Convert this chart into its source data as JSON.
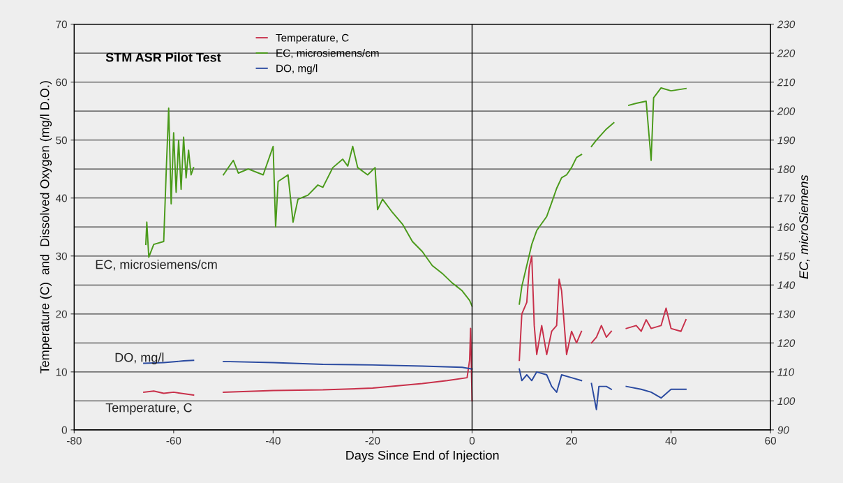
{
  "chart_data": {
    "type": "line",
    "title": "STM ASR Pilot Test",
    "xlabel": "Days Since End of Injection",
    "ylabel": "Temperature (C)  and  Dissolved Oxygen (mg/l D.O.)",
    "y2label": "EC, microSiemens",
    "xlim": [
      -80,
      60
    ],
    "xticks": [
      -80,
      -60,
      -40,
      -20,
      0,
      20,
      40,
      60
    ],
    "ylim": [
      0,
      70
    ],
    "yticks": [
      0,
      10,
      20,
      30,
      40,
      50,
      60,
      70
    ],
    "y2lim": [
      90,
      230
    ],
    "y2ticks": [
      90,
      100,
      110,
      120,
      130,
      140,
      150,
      160,
      170,
      180,
      190,
      200,
      210,
      220,
      230
    ],
    "grid": "y",
    "legend": "top",
    "marker": "none",
    "line_style": "solid",
    "ref_lines": [
      {
        "axis": "x",
        "value": 0,
        "color": "#000000"
      }
    ],
    "annotations": [
      "EC, microsiemens/cm",
      "DO, mg/l",
      "Temperature, C"
    ],
    "series": [
      {
        "name": "Temperature, C",
        "color": "#c8304a",
        "x": [
          -66,
          -64,
          -62,
          -60,
          -56,
          -53,
          -50,
          -40,
          -30,
          -20,
          -10,
          -5,
          -1,
          -0.5,
          -0.3,
          0,
          5,
          9.5,
          10,
          11,
          11.5,
          12,
          12.5,
          13,
          14,
          15,
          16,
          17,
          17.5,
          18,
          19,
          20,
          21,
          22,
          23,
          24,
          25,
          26,
          27,
          28,
          30,
          31,
          33,
          34,
          35,
          36,
          38,
          39,
          40,
          42,
          43
        ],
        "values": [
          6.5,
          6.7,
          6.3,
          6.5,
          6.0,
          null,
          6.5,
          6.8,
          6.9,
          7.2,
          8.0,
          8.5,
          9.0,
          12,
          17.5,
          5,
          null,
          12,
          20,
          22,
          28,
          30,
          18,
          13,
          18,
          13,
          17,
          18,
          26,
          24,
          13,
          17,
          15,
          17,
          null,
          15,
          16,
          18,
          16,
          17,
          null,
          17.5,
          18,
          17,
          19,
          17.5,
          18,
          21,
          17.5,
          17,
          19
        ]
      },
      {
        "name": "EC, microsiemens/cm",
        "color": "#4a9a1a",
        "axis": "y2",
        "x": [
          -65.6,
          -65.4,
          -65,
          -64,
          -62,
          -61.5,
          -61,
          -60.5,
          -60,
          -59.5,
          -59,
          -58.5,
          -58,
          -57.5,
          -57,
          -56.5,
          -56,
          -53,
          -50,
          -48,
          -47,
          -45,
          -42,
          -40,
          -39.5,
          -39,
          -37,
          -36,
          -35,
          -33,
          -31,
          -30,
          -28,
          -26,
          -25,
          -24,
          -23,
          -21,
          -19.5,
          -19,
          -18,
          -16,
          -14,
          -12,
          -10,
          -8,
          -6,
          -4,
          -2,
          -0.5,
          0,
          5,
          9.5,
          10,
          12,
          13,
          15,
          16,
          17,
          18,
          19,
          20,
          21,
          22,
          23,
          24,
          25,
          27,
          28.5,
          30,
          31.5,
          33,
          35,
          36,
          36.5,
          38,
          40,
          43
        ],
        "values": [
          154,
          161.7,
          149.6,
          154,
          155,
          179,
          201,
          168,
          192.5,
          172,
          190,
          173,
          191,
          177,
          186.5,
          178,
          180.5,
          null,
          178,
          183,
          178.6,
          180,
          178,
          187.8,
          160,
          175.7,
          178,
          161.7,
          169.6,
          171,
          174.5,
          173.7,
          180.5,
          183.4,
          181,
          187.8,
          180.5,
          178,
          180.5,
          166,
          169.6,
          165,
          161,
          155,
          151.5,
          146.7,
          144,
          140.7,
          138,
          134.7,
          132.7,
          null,
          133.4,
          139.5,
          154,
          158.8,
          163.6,
          168.4,
          173.3,
          177,
          178,
          180.5,
          184,
          185,
          null,
          187.8,
          190,
          193.8,
          196,
          null,
          202,
          202.7,
          203.4,
          183,
          204.6,
          208,
          207,
          207.8
        ]
      },
      {
        "name": "DO, mg/l",
        "color": "#2a4aa0",
        "x": [
          -66,
          -62,
          -58,
          -56,
          -53,
          -50,
          -40,
          -30,
          -20,
          -10,
          -2,
          0,
          5,
          9.5,
          10,
          11,
          12,
          13,
          15,
          16,
          17,
          18,
          20,
          22,
          23,
          24,
          25,
          25.5,
          27,
          28,
          30,
          31,
          34,
          36,
          38,
          40,
          43
        ],
        "values": [
          11.5,
          11.6,
          11.9,
          12.0,
          null,
          11.8,
          11.6,
          11.3,
          11.2,
          11.0,
          10.8,
          10.5,
          null,
          10.5,
          8.5,
          9.5,
          8.5,
          10,
          9.5,
          7.5,
          6.5,
          9.5,
          9,
          8.5,
          null,
          8,
          3.5,
          7.5,
          7.5,
          7,
          null,
          7.5,
          7,
          6.5,
          5.5,
          7,
          7
        ]
      }
    ]
  }
}
